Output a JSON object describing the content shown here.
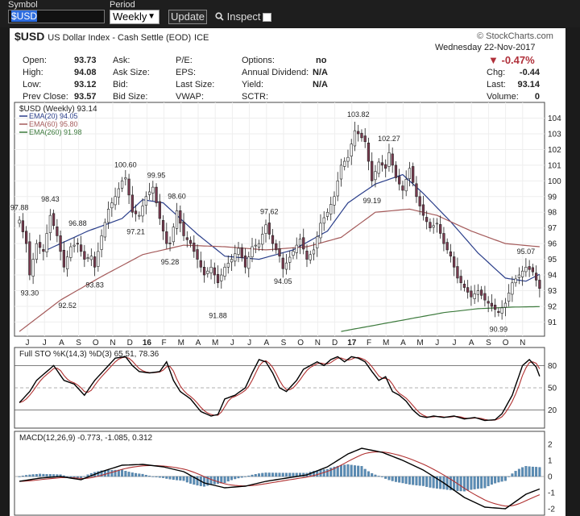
{
  "toolbar": {
    "symbol_label": "Symbol",
    "symbol_value": "$USD",
    "period_label": "Period",
    "period_value": "Weekly",
    "update_label": "Update",
    "inspect_label": "Inspect"
  },
  "header": {
    "symbol": "$USD",
    "name": "US Dollar Index - Cash Settle (EOD)",
    "exchange": "ICE",
    "copyright": "© StockCharts.com",
    "date": "Wednesday  22-Nov-2017",
    "pct_change": "-0.47%",
    "chg_label": "Chg:",
    "chg_value": "-0.44",
    "last_label": "Last:",
    "last_value": "93.14",
    "volume_label": "Volume:",
    "volume_value": "0"
  },
  "quote": {
    "open_label": "Open:",
    "open": "93.73",
    "high_label": "High:",
    "high": "94.08",
    "low_label": "Low:",
    "low": "93.12",
    "prev_label": "Prev Close:",
    "prev": "93.57",
    "ask_label": "Ask:",
    "ask_size_label": "Ask Size:",
    "bid_label": "Bid:",
    "bid_size_label": "Bid Size:",
    "pe_label": "P/E:",
    "eps_label": "EPS:",
    "last_size_label": "Last Size:",
    "vwap_label": "VWAP:",
    "options_label": "Options:",
    "options": "no",
    "annual_div_label": "Annual Dividend:",
    "annual_div": "N/A",
    "yield_label": "Yield:",
    "yield": "N/A",
    "sctr_label": "SCTR:"
  },
  "colors": {
    "up": "#ffffff",
    "down": "#7a3b50",
    "ema20": "#2a3e8a",
    "ema60": "#a45a5a",
    "ema260": "#3c7a3c",
    "sto_k": "#000000",
    "sto_d": "#b03030",
    "macd": "#000000",
    "macd_signal": "#b03030",
    "hist": "#5a8cb4"
  },
  "chart_data": [
    {
      "type": "candlestick",
      "title": "$USD (Weekly) 93.14",
      "legend": [
        {
          "name": "$USD (Weekly)",
          "value": "93.14"
        },
        {
          "name": "EMA(20)",
          "value": "94.05"
        },
        {
          "name": "EMA(60)",
          "value": "95.80"
        },
        {
          "name": "EMA(260)",
          "value": "91.98"
        }
      ],
      "x_ticks": [
        "J",
        "J",
        "A",
        "S",
        "O",
        "N",
        "D",
        "16",
        "F",
        "M",
        "A",
        "M",
        "J",
        "J",
        "A",
        "S",
        "O",
        "N",
        "D",
        "17",
        "F",
        "M",
        "A",
        "M",
        "J",
        "J",
        "A",
        "S",
        "O",
        "N"
      ],
      "y_ticks": [
        91,
        92,
        93,
        94,
        95,
        96,
        97,
        98,
        99,
        100,
        101,
        102,
        103,
        104
      ],
      "ylim": [
        90.3,
        104.8
      ],
      "annotations": [
        {
          "label": "97.88",
          "week": 0,
          "value": 97.88,
          "pos": "above"
        },
        {
          "label": "93.30",
          "week": 3,
          "value": 93.3,
          "pos": "below"
        },
        {
          "label": "98.43",
          "week": 9,
          "value": 98.43,
          "pos": "above"
        },
        {
          "label": "92.52",
          "week": 14,
          "value": 92.52,
          "pos": "below"
        },
        {
          "label": "96.88",
          "week": 17,
          "value": 96.88,
          "pos": "above"
        },
        {
          "label": "93.83",
          "week": 22,
          "value": 93.83,
          "pos": "below"
        },
        {
          "label": "100.60",
          "week": 31,
          "value": 100.6,
          "pos": "above"
        },
        {
          "label": "97.21",
          "week": 34,
          "value": 97.21,
          "pos": "below"
        },
        {
          "label": "99.95",
          "week": 40,
          "value": 99.95,
          "pos": "above"
        },
        {
          "label": "98.60",
          "week": 46,
          "value": 98.6,
          "pos": "above"
        },
        {
          "label": "95.28",
          "week": 44,
          "value": 95.28,
          "pos": "below"
        },
        {
          "label": "91.88",
          "week": 58,
          "value": 91.88,
          "pos": "below"
        },
        {
          "label": "97.62",
          "week": 73,
          "value": 97.62,
          "pos": "above"
        },
        {
          "label": "94.05",
          "week": 77,
          "value": 94.05,
          "pos": "below"
        },
        {
          "label": "103.82",
          "week": 99,
          "value": 103.82,
          "pos": "above"
        },
        {
          "label": "99.19",
          "week": 103,
          "value": 99.19,
          "pos": "below"
        },
        {
          "label": "102.27",
          "week": 108,
          "value": 102.27,
          "pos": "above"
        },
        {
          "label": "95.07",
          "week": 148,
          "value": 95.07,
          "pos": "above"
        },
        {
          "label": "90.99",
          "week": 140,
          "value": 90.99,
          "pos": "below"
        }
      ],
      "anchors": [
        [
          0,
          97.5
        ],
        [
          2,
          96.0
        ],
        [
          3,
          94.0
        ],
        [
          5,
          96.0
        ],
        [
          7,
          95.5
        ],
        [
          9,
          97.8
        ],
        [
          11,
          96.5
        ],
        [
          13,
          94.5
        ],
        [
          15,
          95.8
        ],
        [
          17,
          96.0
        ],
        [
          19,
          95.0
        ],
        [
          21,
          95.2
        ],
        [
          22,
          94.5
        ],
        [
          24,
          96.5
        ],
        [
          26,
          98.2
        ],
        [
          28,
          99.0
        ],
        [
          30,
          100.0
        ],
        [
          31,
          100.2
        ],
        [
          33,
          98.0
        ],
        [
          35,
          97.8
        ],
        [
          37,
          99.0
        ],
        [
          39,
          99.6
        ],
        [
          41,
          97.6
        ],
        [
          43,
          96.0
        ],
        [
          44,
          96.0
        ],
        [
          46,
          98.1
        ],
        [
          48,
          96.5
        ],
        [
          50,
          96.0
        ],
        [
          52,
          95.0
        ],
        [
          54,
          94.0
        ],
        [
          56,
          94.5
        ],
        [
          58,
          93.5
        ],
        [
          60,
          94.5
        ],
        [
          62,
          95.0
        ],
        [
          64,
          95.7
        ],
        [
          66,
          94.5
        ],
        [
          68,
          95.8
        ],
        [
          70,
          96.0
        ],
        [
          72,
          97.2
        ],
        [
          74,
          96.0
        ],
        [
          76,
          95.2
        ],
        [
          77,
          94.4
        ],
        [
          80,
          95.5
        ],
        [
          82,
          96.3
        ],
        [
          84,
          95.0
        ],
        [
          86,
          95.6
        ],
        [
          88,
          97.3
        ],
        [
          90,
          98.0
        ],
        [
          92,
          99.0
        ],
        [
          94,
          101.0
        ],
        [
          96,
          101.5
        ],
        [
          98,
          103.2
        ],
        [
          99,
          103.0
        ],
        [
          101,
          102.5
        ],
        [
          103,
          100.0
        ],
        [
          105,
          101.2
        ],
        [
          107,
          100.8
        ],
        [
          108,
          101.8
        ],
        [
          110,
          100.2
        ],
        [
          112,
          99.4
        ],
        [
          114,
          100.8
        ],
        [
          116,
          99.0
        ],
        [
          118,
          97.8
        ],
        [
          120,
          97.0
        ],
        [
          122,
          97.3
        ],
        [
          124,
          96.0
        ],
        [
          126,
          95.2
        ],
        [
          128,
          93.8
        ],
        [
          130,
          93.2
        ],
        [
          132,
          92.6
        ],
        [
          134,
          93.0
        ],
        [
          136,
          92.4
        ],
        [
          138,
          92.0
        ],
        [
          140,
          91.6
        ],
        [
          142,
          92.2
        ],
        [
          144,
          93.5
        ],
        [
          146,
          94.0
        ],
        [
          148,
          94.5
        ],
        [
          150,
          94.2
        ],
        [
          152,
          93.14
        ]
      ],
      "ema_anchors": {
        "EMA(20)": [
          [
            8,
            95.6
          ],
          [
            20,
            96.8
          ],
          [
            30,
            97.6
          ],
          [
            36,
            98.8
          ],
          [
            42,
            98.6
          ],
          [
            52,
            96.6
          ],
          [
            60,
            95.2
          ],
          [
            70,
            95.0
          ],
          [
            80,
            95.6
          ],
          [
            90,
            96.8
          ],
          [
            96,
            98.6
          ],
          [
            104,
            99.8
          ],
          [
            112,
            100.4
          ],
          [
            118,
            99.2
          ],
          [
            126,
            97.4
          ],
          [
            134,
            95.4
          ],
          [
            142,
            93.8
          ],
          [
            148,
            93.6
          ],
          [
            152,
            94.05
          ]
        ],
        "EMA(60)": [
          [
            0,
            90.4
          ],
          [
            12,
            92.4
          ],
          [
            24,
            93.9
          ],
          [
            36,
            95.3
          ],
          [
            48,
            95.9
          ],
          [
            60,
            95.8
          ],
          [
            72,
            95.6
          ],
          [
            84,
            95.8
          ],
          [
            94,
            96.4
          ],
          [
            104,
            98.0
          ],
          [
            114,
            98.2
          ],
          [
            122,
            97.8
          ],
          [
            132,
            96.8
          ],
          [
            142,
            96.0
          ],
          [
            152,
            95.8
          ]
        ],
        "EMA(260)": [
          [
            94,
            90.4
          ],
          [
            104,
            90.8
          ],
          [
            114,
            91.2
          ],
          [
            124,
            91.6
          ],
          [
            134,
            91.85
          ],
          [
            144,
            91.95
          ],
          [
            152,
            91.98
          ]
        ]
      }
    },
    {
      "type": "line",
      "title": "Full STO %K(14,3) %D(3) 65.51, 78.36",
      "series": [
        {
          "name": "%K(14,3)",
          "value": 65.51
        },
        {
          "name": "%D(3)",
          "value": 78.36
        }
      ],
      "y_ticks": [
        20,
        50,
        80
      ],
      "ylim": [
        0,
        100
      ],
      "k_anchors": [
        [
          0,
          30
        ],
        [
          3,
          45
        ],
        [
          5,
          60
        ],
        [
          8,
          72
        ],
        [
          10,
          80
        ],
        [
          13,
          60
        ],
        [
          16,
          55
        ],
        [
          19,
          40
        ],
        [
          22,
          60
        ],
        [
          25,
          75
        ],
        [
          28,
          90
        ],
        [
          31,
          92
        ],
        [
          33,
          80
        ],
        [
          35,
          72
        ],
        [
          38,
          70
        ],
        [
          41,
          72
        ],
        [
          43,
          85
        ],
        [
          45,
          60
        ],
        [
          47,
          45
        ],
        [
          50,
          35
        ],
        [
          53,
          18
        ],
        [
          56,
          12
        ],
        [
          58,
          14
        ],
        [
          60,
          35
        ],
        [
          63,
          40
        ],
        [
          66,
          50
        ],
        [
          68,
          70
        ],
        [
          70,
          88
        ],
        [
          72,
          85
        ],
        [
          74,
          70
        ],
        [
          76,
          50
        ],
        [
          78,
          45
        ],
        [
          81,
          60
        ],
        [
          83,
          75
        ],
        [
          85,
          80
        ],
        [
          87,
          85
        ],
        [
          89,
          80
        ],
        [
          91,
          88
        ],
        [
          93,
          92
        ],
        [
          95,
          85
        ],
        [
          97,
          92
        ],
        [
          99,
          90
        ],
        [
          101,
          85
        ],
        [
          103,
          72
        ],
        [
          105,
          60
        ],
        [
          107,
          65
        ],
        [
          109,
          45
        ],
        [
          111,
          40
        ],
        [
          113,
          32
        ],
        [
          115,
          20
        ],
        [
          117,
          12
        ],
        [
          119,
          10
        ],
        [
          121,
          12
        ],
        [
          124,
          10
        ],
        [
          127,
          12
        ],
        [
          130,
          8
        ],
        [
          133,
          10
        ],
        [
          136,
          6
        ],
        [
          139,
          7
        ],
        [
          141,
          15
        ],
        [
          144,
          40
        ],
        [
          147,
          80
        ],
        [
          149,
          88
        ],
        [
          151,
          78
        ],
        [
          152,
          65.51
        ]
      ]
    },
    {
      "type": "line",
      "title": "MACD(12,26,9) -0.773, -1.085, 0.312",
      "series": [
        {
          "name": "MACD(12,26,9)",
          "value": -0.773
        },
        {
          "name": "Signal",
          "value": -1.085
        },
        {
          "name": "Histogram",
          "value": 0.312
        }
      ],
      "y_ticks": [
        -2,
        -1,
        0,
        1,
        2
      ],
      "ylim": [
        -2.2,
        2.6
      ],
      "macd_anchors": [
        [
          0,
          -0.3
        ],
        [
          6,
          -0.1
        ],
        [
          12,
          0.0
        ],
        [
          18,
          -0.2
        ],
        [
          24,
          0.3
        ],
        [
          30,
          0.7
        ],
        [
          36,
          0.75
        ],
        [
          42,
          0.6
        ],
        [
          48,
          0.3
        ],
        [
          54,
          -0.4
        ],
        [
          60,
          -0.7
        ],
        [
          66,
          -0.6
        ],
        [
          72,
          -0.3
        ],
        [
          78,
          -0.1
        ],
        [
          84,
          0.1
        ],
        [
          90,
          0.6
        ],
        [
          96,
          1.4
        ],
        [
          100,
          1.75
        ],
        [
          106,
          1.5
        ],
        [
          112,
          1.0
        ],
        [
          118,
          0.4
        ],
        [
          124,
          -0.4
        ],
        [
          130,
          -1.3
        ],
        [
          136,
          -1.9
        ],
        [
          142,
          -2.0
        ],
        [
          148,
          -1.1
        ],
        [
          152,
          -0.773
        ]
      ]
    }
  ]
}
